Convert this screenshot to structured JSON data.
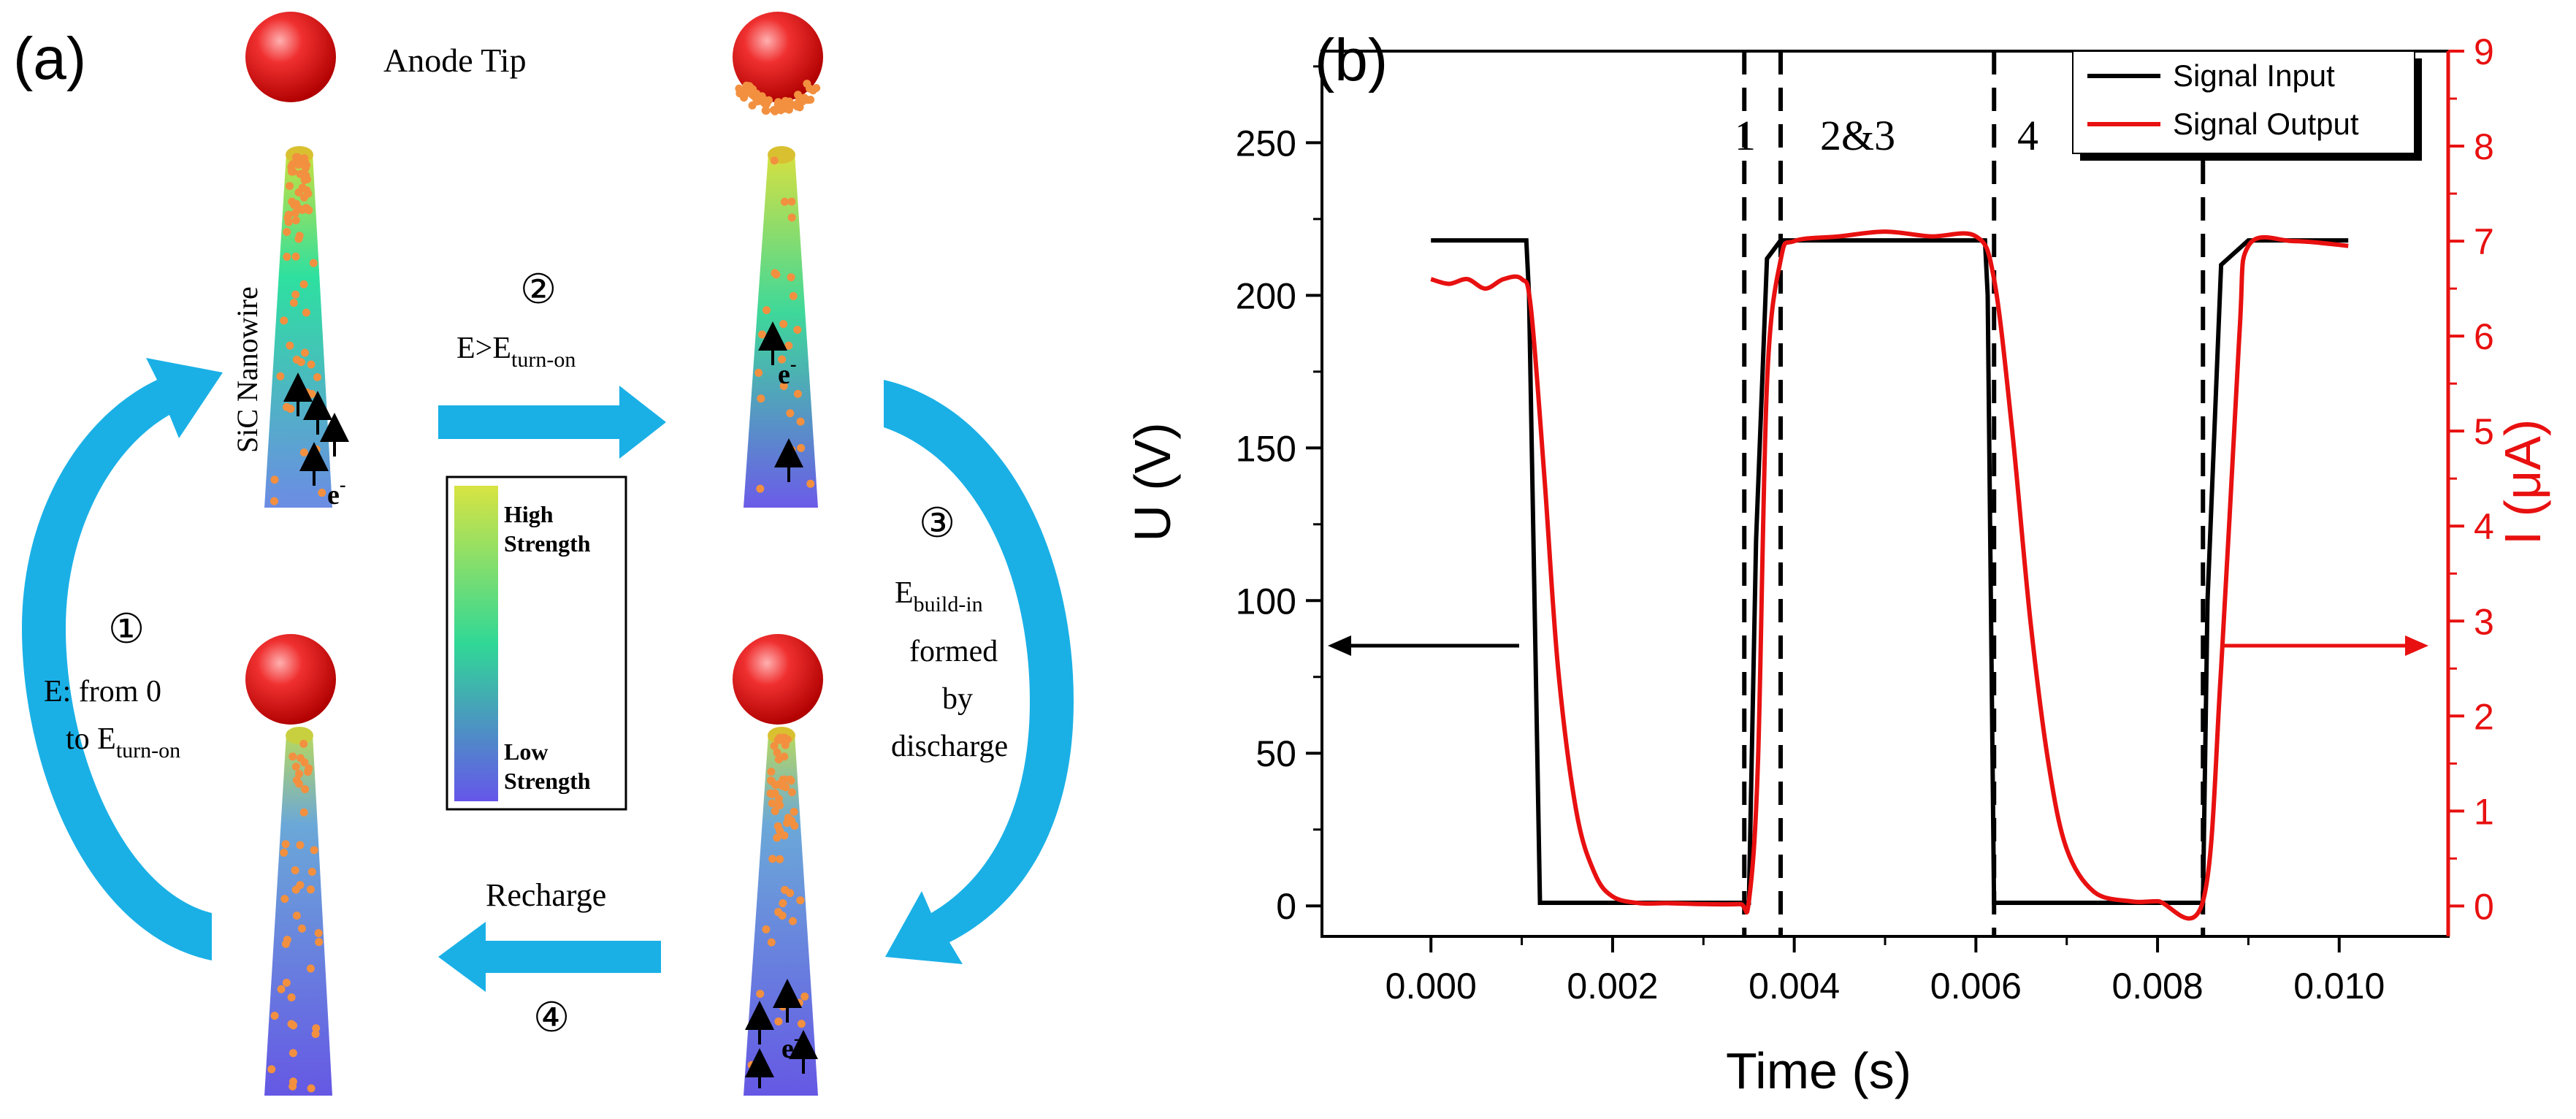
{
  "panel_a": {
    "label": "(a)",
    "anode_tip": "Anode Tip",
    "nanowire": "SiC Nanowire",
    "step1": {
      "num": "①",
      "line1": "E:  from 0",
      "line2": "to E",
      "sub": "turn-on"
    },
    "step2": {
      "num": "②",
      "main": "E>E",
      "sub": "turn-on"
    },
    "step3": {
      "num": "③",
      "main": "E",
      "sub": "build-in",
      "line2": "formed",
      "line3": "by",
      "line4": "discharge"
    },
    "step4": {
      "num": "④",
      "label": "Recharge"
    },
    "legend": {
      "high1": "High",
      "high2": "Strength",
      "low1": "Low",
      "low2": "Strength"
    },
    "electron": "e",
    "electron_sup": "-",
    "colors": {
      "arrow": "#1ab0e6",
      "sphere": "#e01010",
      "wire_top": "#cce048",
      "wire_mid": "#2ed8a0",
      "wire_bottom": "#6a5de8"
    }
  },
  "panel_b": {
    "label": "(b)",
    "region_labels": [
      "1",
      "2&3",
      "4"
    ],
    "colors": {
      "input": "#000000",
      "output": "#e81010"
    }
  },
  "chart_data": {
    "type": "line",
    "title": "",
    "xlabel": "Time (s)",
    "ylabel": "U (V)",
    "ylabel_right": "I (μA)",
    "xlim": [
      -0.0012,
      0.0112
    ],
    "ylim": [
      -10,
      280
    ],
    "ylim_right": [
      -0.32,
      9
    ],
    "x_ticks": [
      "0.000",
      "0.002",
      "0.004",
      "0.006",
      "0.008",
      "0.010"
    ],
    "x_tick_values": [
      0,
      0.002,
      0.004,
      0.006,
      0.008,
      0.01
    ],
    "y_ticks": [
      "0",
      "50",
      "100",
      "150",
      "200",
      "250"
    ],
    "y_tick_values": [
      0,
      50,
      100,
      150,
      200,
      250
    ],
    "y_ticks_right": [
      "0",
      "1",
      "2",
      "3",
      "4",
      "5",
      "6",
      "7",
      "8",
      "9"
    ],
    "y_tick_values_right": [
      0,
      1,
      2,
      3,
      4,
      5,
      6,
      7,
      8,
      9
    ],
    "dashed_lines_x": [
      0.00345,
      0.00385,
      0.0062,
      0.0085
    ],
    "legend": [
      "Signal Input",
      "Signal Output"
    ],
    "series": [
      {
        "name": "Signal Input",
        "axis": "left",
        "x": [
          0,
          0.00105,
          0.00108,
          0.0012,
          0.0035,
          0.00358,
          0.0037,
          0.00385,
          0.0061,
          0.00613,
          0.0062,
          0.0085,
          0.00855,
          0.0087,
          0.009,
          0.0101
        ],
        "values": [
          218,
          218,
          200,
          1,
          1,
          120,
          212,
          218,
          218,
          200,
          1,
          1,
          100,
          210,
          218,
          218
        ]
      },
      {
        "name": "Signal Output",
        "axis": "left-scaled",
        "x": [
          0,
          0.0002,
          0.0004,
          0.0006,
          0.0008,
          0.001,
          0.0011,
          0.00125,
          0.0014,
          0.0016,
          0.0018,
          0.002,
          0.0023,
          0.0026,
          0.003,
          0.0034,
          0.0035,
          0.0036,
          0.0037,
          0.00385,
          0.004,
          0.0045,
          0.005,
          0.0055,
          0.006,
          0.0062,
          0.0064,
          0.0066,
          0.0068,
          0.007,
          0.0073,
          0.0077,
          0.008,
          0.0085,
          0.0087,
          0.0089,
          0.009,
          0.0095,
          0.0101
        ],
        "values": [
          6.6,
          6.55,
          6.6,
          6.5,
          6.6,
          6.6,
          6.3,
          4.5,
          2.5,
          1.0,
          0.35,
          0.1,
          0.03,
          0.03,
          0.02,
          0.02,
          0.05,
          1.5,
          5.5,
          6.8,
          7.0,
          7.05,
          7.1,
          7.05,
          7.05,
          6.6,
          5.0,
          3.0,
          1.5,
          0.6,
          0.15,
          0.05,
          0.05,
          0.05,
          2.5,
          6.0,
          6.95,
          7.0,
          6.95
        ]
      }
    ],
    "annotations": [
      "1",
      "2&3",
      "4"
    ]
  }
}
